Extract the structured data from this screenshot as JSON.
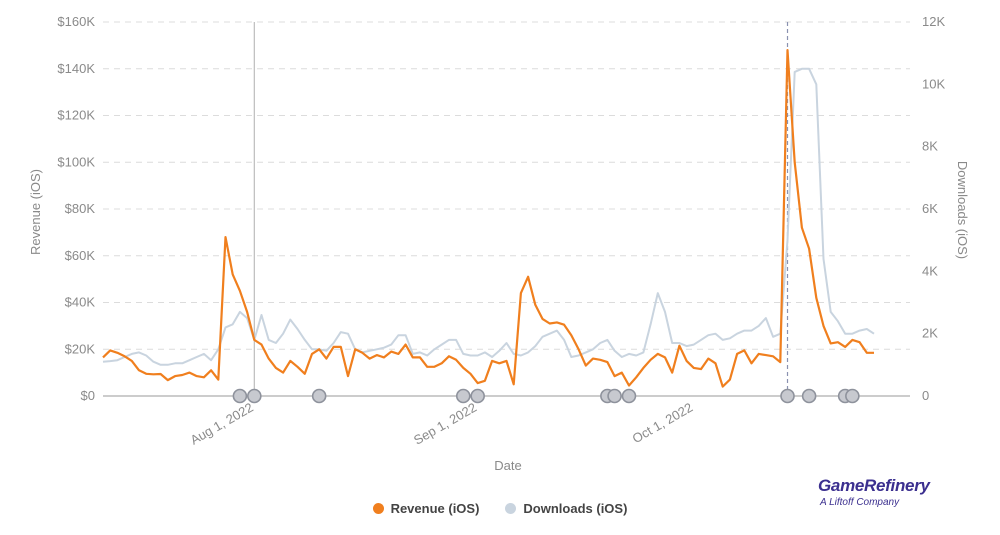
{
  "chart_data": {
    "type": "line",
    "xlabel": "Date",
    "ylabel_left": "Revenue (iOS)",
    "ylabel_right": "Downloads (iOS)",
    "x_start": "2022-07-11",
    "x_end": "2022-10-31",
    "x_ticks": [
      {
        "date": "2022-08-01",
        "label": "Aug 1, 2022"
      },
      {
        "date": "2022-09-01",
        "label": "Sep 1, 2022"
      },
      {
        "date": "2022-10-01",
        "label": "Oct 1, 2022"
      }
    ],
    "y_left": {
      "min": 0,
      "max": 160000,
      "ticks": [
        0,
        20000,
        40000,
        60000,
        80000,
        100000,
        120000,
        140000,
        160000
      ],
      "tick_labels": [
        "$0",
        "$20K",
        "$40K",
        "$60K",
        "$80K",
        "$100K",
        "$120K",
        "$140K",
        "$160K"
      ]
    },
    "y_right": {
      "min": 0,
      "max": 12000,
      "ticks": [
        0,
        2000,
        4000,
        6000,
        8000,
        10000,
        12000
      ],
      "tick_labels": [
        "0",
        "2K",
        "4K",
        "6K",
        "8K",
        "10K",
        "12K"
      ]
    },
    "grid": true,
    "legend_position": "bottom",
    "reference_lines": [
      {
        "date": "2022-08-01",
        "style": "solid"
      },
      {
        "date": "2022-10-14",
        "style": "dashed"
      }
    ],
    "series": [
      {
        "name": "Revenue (iOS)",
        "axis": "left",
        "color": "#f07f1e",
        "values": [
          16500,
          19500,
          18500,
          17000,
          15000,
          11000,
          9500,
          9300,
          9400,
          6800,
          8500,
          9000,
          10000,
          8500,
          8000,
          11000,
          7000,
          68000,
          52000,
          45000,
          36000,
          24000,
          22000,
          16000,
          12000,
          10000,
          15000,
          12500,
          9500,
          18000,
          20000,
          16000,
          21000,
          21000,
          8500,
          20000,
          18500,
          16000,
          17500,
          16500,
          19000,
          18000,
          22000,
          16500,
          16500,
          12500,
          12500,
          14000,
          17000,
          15500,
          12000,
          9500,
          5500,
          6500,
          15000,
          14000,
          15000,
          5000,
          44000,
          51000,
          39000,
          33000,
          31000,
          31500,
          30500,
          26000,
          20000,
          13000,
          16000,
          15500,
          14500,
          8500,
          10000,
          4500,
          8000,
          12000,
          15500,
          18000,
          16500,
          10000,
          21500,
          15000,
          12000,
          11500,
          16000,
          14000,
          4000,
          7000,
          18000,
          19500,
          14000,
          18000,
          17500,
          17000,
          14500,
          148000,
          100000,
          72000,
          63000,
          42000,
          30000,
          22500,
          23000,
          21000,
          24000,
          23000,
          18500,
          18500
        ],
        "markers": [
          "2022-07-30",
          "2022-08-01",
          "2022-08-10",
          "2022-08-30",
          "2022-09-01",
          "2022-09-19",
          "2022-09-20",
          "2022-09-22",
          "2022-10-14",
          "2022-10-17",
          "2022-10-22",
          "2022-10-23"
        ]
      },
      {
        "name": "Downloads (iOS)",
        "axis": "right",
        "color": "#c9d4df",
        "values": [
          1100,
          1120,
          1150,
          1250,
          1350,
          1400,
          1300,
          1100,
          1000,
          1000,
          1050,
          1050,
          1150,
          1250,
          1350,
          1150,
          1500,
          2200,
          2300,
          2700,
          2500,
          1800,
          2600,
          1800,
          1700,
          2000,
          2450,
          2150,
          1800,
          1500,
          1500,
          1450,
          1700,
          2050,
          2000,
          1500,
          1400,
          1450,
          1500,
          1550,
          1650,
          1950,
          1950,
          1350,
          1400,
          1300,
          1500,
          1650,
          1800,
          1800,
          1350,
          1300,
          1300,
          1400,
          1250,
          1450,
          1700,
          1350,
          1300,
          1400,
          1600,
          1900,
          2000,
          2100,
          1800,
          1250,
          1300,
          1400,
          1500,
          1700,
          1800,
          1450,
          1250,
          1350,
          1300,
          1400,
          2300,
          3300,
          2700,
          1700,
          1700,
          1600,
          1650,
          1800,
          1950,
          2000,
          1800,
          1850,
          2000,
          2100,
          2100,
          2250,
          2500,
          1900,
          2000,
          5000,
          10400,
          10500,
          10500,
          10000,
          4400,
          2700,
          2400,
          2000,
          2000,
          2100,
          2150,
          2000
        ]
      }
    ]
  },
  "legend": {
    "items": [
      {
        "label": "Revenue (iOS)",
        "color": "#f07f1e"
      },
      {
        "label": "Downloads (iOS)",
        "color": "#c9d4df"
      }
    ]
  },
  "brand": {
    "name": "GameRefinery",
    "tagline": "A Liftoff Company"
  }
}
